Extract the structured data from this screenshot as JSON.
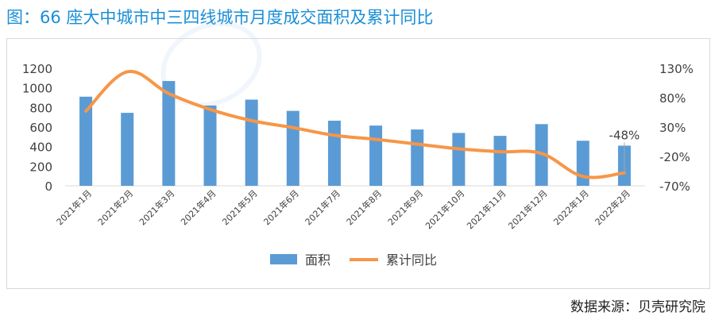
{
  "title": "图：66 座大中城市中三四线城市月度成交面积及累计同比",
  "source": "数据来源：贝壳研究院",
  "chart_data": {
    "type": "bar",
    "categories": [
      "2021年1月",
      "2021年2月",
      "2021年3月",
      "2021年4月",
      "2021年5月",
      "2021年6月",
      "2021年7月",
      "2021年8月",
      "2021年9月",
      "2021年10月",
      "2021年11月",
      "2021年12月",
      "2022年1月",
      "2022年2月"
    ],
    "series": [
      {
        "name": "面积",
        "type": "bar",
        "axis": "left",
        "color": "#5b9bd5",
        "values": [
          910,
          745,
          1070,
          820,
          880,
          765,
          665,
          615,
          575,
          540,
          510,
          630,
          460,
          410
        ]
      },
      {
        "name": "累计同比",
        "type": "line",
        "axis": "right",
        "color": "#f79646",
        "values": [
          57,
          124,
          87,
          60,
          41,
          29,
          16,
          9,
          1,
          -7,
          -12,
          -15,
          -54,
          -48
        ]
      }
    ],
    "y_left": {
      "min": 0,
      "max": 1200,
      "ticks": [
        0,
        200,
        400,
        600,
        800,
        1000,
        1200
      ]
    },
    "y_right": {
      "min": -70,
      "max": 130,
      "ticks": [
        "130%",
        "80%",
        "30%",
        "-20%",
        "-70%"
      ],
      "tick_values": [
        130,
        80,
        30,
        -20,
        -70
      ]
    },
    "annotation": "-48%",
    "grid": false,
    "legend_position": "bottom"
  }
}
